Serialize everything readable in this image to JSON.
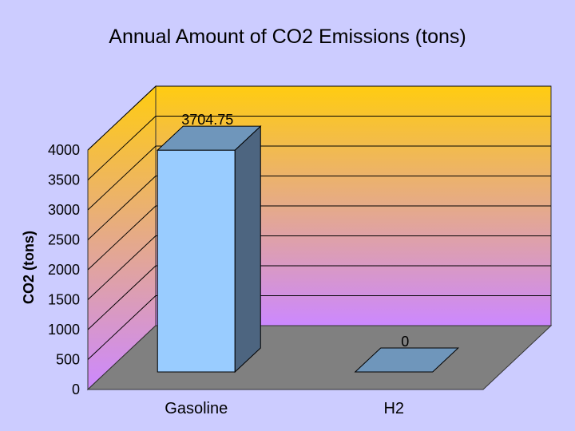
{
  "chart_data": {
    "type": "bar",
    "title": "Annual Amount of CO2 Emissions (tons)",
    "xlabel": "",
    "ylabel": "CO2 (tons)",
    "categories": [
      "Gasoline",
      "H2"
    ],
    "values": [
      3704.75,
      0
    ],
    "data_labels": [
      "3704.75",
      "0"
    ],
    "ylim": [
      0,
      4000
    ],
    "yticks": [
      "0",
      "500",
      "1000",
      "1500",
      "2000",
      "2500",
      "3000",
      "3500",
      "4000"
    ],
    "grid": true,
    "legend": "none",
    "three_d": true,
    "colors": {
      "background": "#ccccff",
      "wall_top": "#ffcc11",
      "wall_bottom": "#cc88ff",
      "floor": "#808080",
      "bar_front": "#99ccff",
      "bar_top": "#6f96bb",
      "bar_side": "#4d6580"
    }
  }
}
